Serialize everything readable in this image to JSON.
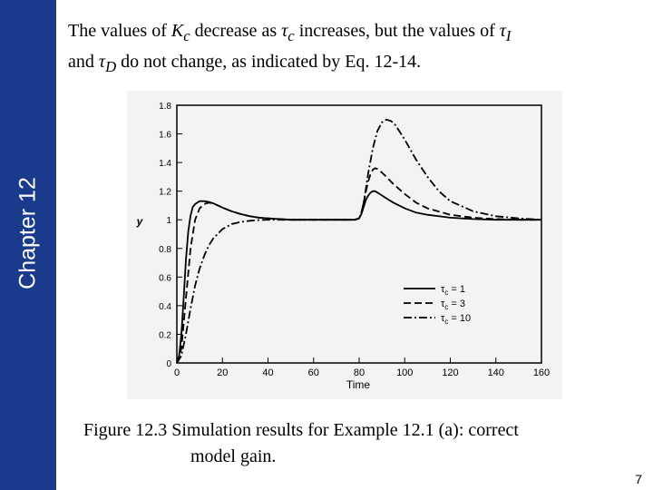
{
  "slide": {
    "chapter": "Chapter 12",
    "title_parts": {
      "p1": "The values of ",
      "kc": "K",
      "kc_sub": "c",
      "p2": " decrease as ",
      "tau_c": "τ",
      "tau_c_sub": "c",
      "p3": " increases, but the values of ",
      "tau_i": "τ",
      "tau_i_sub": "I",
      "p4": "and ",
      "tau_d": "τ",
      "tau_d_sub": "D",
      "p5": " do not change, as indicated by Eq. 12-14."
    },
    "caption_line1": "Figure 12.3 Simulation results for Example 12.1 (a): correct",
    "caption_line2": "model gain.",
    "page_number": "7",
    "colors": {
      "sidebar": "#1a3a8c",
      "chart_bg": "#f3f3f3"
    }
  },
  "chart_data": {
    "type": "line",
    "xlabel": "Time",
    "ylabel": "y",
    "xlim": [
      0,
      160
    ],
    "ylim": [
      0,
      1.8
    ],
    "xticks": [
      0,
      20,
      40,
      60,
      80,
      100,
      120,
      140,
      160
    ],
    "yticks": [
      0,
      0.2,
      0.4,
      0.6,
      0.8,
      1,
      1.2,
      1.4,
      1.6,
      1.8
    ],
    "grid": false,
    "legend_position": "bottom-right",
    "series": [
      {
        "name": "τc = 1",
        "legend_base": "τ",
        "legend_sub": "c",
        "legend_val": "= 1",
        "style": "solid",
        "x": [
          0,
          1,
          2,
          3,
          4,
          5,
          6,
          7,
          8,
          10,
          12,
          14,
          16,
          18,
          20,
          24,
          28,
          32,
          36,
          40,
          50,
          60,
          70,
          78,
          80,
          81,
          82,
          83,
          84,
          85,
          86,
          87,
          88,
          90,
          92,
          95,
          100,
          105,
          110,
          120,
          130,
          140,
          150,
          160
        ],
        "y": [
          0,
          0.05,
          0.2,
          0.45,
          0.72,
          0.92,
          1.03,
          1.09,
          1.11,
          1.13,
          1.13,
          1.125,
          1.115,
          1.1,
          1.085,
          1.06,
          1.04,
          1.025,
          1.015,
          1.01,
          1.0,
          1.0,
          1.0,
          1.0,
          1.01,
          1.04,
          1.09,
          1.14,
          1.17,
          1.19,
          1.2,
          1.2,
          1.19,
          1.17,
          1.15,
          1.12,
          1.08,
          1.05,
          1.035,
          1.015,
          1.005,
          1.0,
          1.0,
          1.0
        ]
      },
      {
        "name": "τc = 3",
        "legend_base": "τ",
        "legend_sub": "c",
        "legend_val": "= 3",
        "style": "dashed",
        "x": [
          0,
          2,
          4,
          6,
          8,
          10,
          12,
          14,
          16,
          18,
          20,
          24,
          28,
          32,
          36,
          40,
          50,
          60,
          70,
          78,
          80,
          81,
          82,
          83,
          84,
          85,
          86,
          87,
          88,
          90,
          92,
          95,
          100,
          105,
          110,
          120,
          130,
          140,
          150,
          160
        ],
        "y": [
          0,
          0.1,
          0.45,
          0.8,
          1.0,
          1.08,
          1.11,
          1.12,
          1.115,
          1.1,
          1.085,
          1.06,
          1.04,
          1.025,
          1.015,
          1.01,
          1.0,
          1.0,
          1.0,
          1.0,
          1.01,
          1.05,
          1.12,
          1.2,
          1.27,
          1.32,
          1.35,
          1.36,
          1.355,
          1.33,
          1.3,
          1.25,
          1.18,
          1.12,
          1.08,
          1.035,
          1.015,
          1.005,
          1.0,
          1.0
        ]
      },
      {
        "name": "τc = 10",
        "legend_base": "τ",
        "legend_sub": "c",
        "legend_val": "= 10",
        "style": "dashdot",
        "x": [
          0,
          2,
          4,
          6,
          8,
          10,
          12,
          14,
          16,
          20,
          24,
          28,
          32,
          36,
          40,
          50,
          60,
          70,
          78,
          80,
          81,
          82,
          83,
          84,
          86,
          88,
          90,
          92,
          94,
          96,
          100,
          105,
          110,
          115,
          120,
          130,
          140,
          150,
          160
        ],
        "y": [
          0,
          0.05,
          0.2,
          0.38,
          0.54,
          0.66,
          0.75,
          0.82,
          0.87,
          0.935,
          0.97,
          0.985,
          0.993,
          0.998,
          1.0,
          1.0,
          1.0,
          1.0,
          1.0,
          1.01,
          1.05,
          1.12,
          1.22,
          1.33,
          1.5,
          1.62,
          1.68,
          1.7,
          1.69,
          1.66,
          1.56,
          1.42,
          1.3,
          1.2,
          1.13,
          1.06,
          1.025,
          1.01,
          1.0
        ]
      }
    ]
  }
}
